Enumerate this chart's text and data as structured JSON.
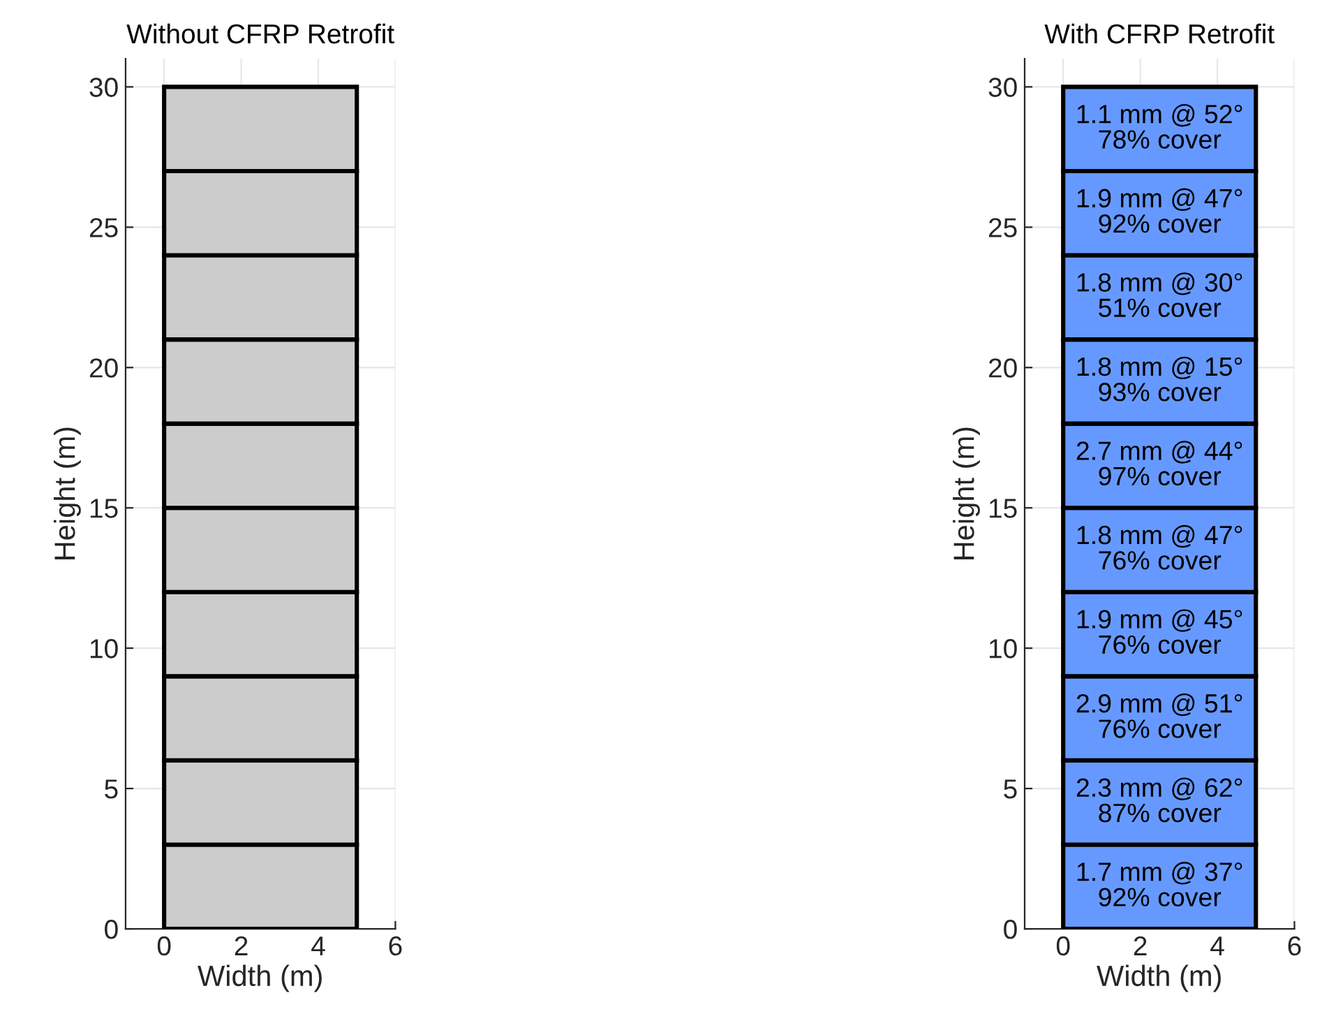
{
  "chart_data": [
    {
      "type": "bar",
      "title": "Without CFRP Retrofit",
      "xlabel": "Width (m)",
      "ylabel": "Height (m)",
      "stacked": true,
      "x": [
        2.5
      ],
      "xlim": [
        -1,
        6
      ],
      "xticks": [
        0,
        2,
        4,
        6
      ],
      "ylim": [
        0,
        31
      ],
      "yticks": [
        0,
        5,
        10,
        15,
        20,
        25,
        30
      ],
      "grid": true,
      "series": [
        {
          "color": "#cccccc",
          "values": [
            3
          ]
        },
        {
          "color": "#cccccc",
          "values": [
            3
          ]
        },
        {
          "color": "#cccccc",
          "values": [
            3
          ]
        },
        {
          "color": "#cccccc",
          "values": [
            3
          ]
        },
        {
          "color": "#cccccc",
          "values": [
            3
          ]
        },
        {
          "color": "#cccccc",
          "values": [
            3
          ]
        },
        {
          "color": "#cccccc",
          "values": [
            3
          ]
        },
        {
          "color": "#cccccc",
          "values": [
            3
          ]
        },
        {
          "color": "#cccccc",
          "values": [
            3
          ]
        },
        {
          "color": "#cccccc",
          "values": [
            3
          ]
        }
      ]
    },
    {
      "type": "bar",
      "title": "With CFRP Retrofit",
      "xlabel": "Width (m)",
      "ylabel": "Height (m)",
      "stacked": true,
      "x": [
        2.5
      ],
      "xlim": [
        -1,
        6
      ],
      "xticks": [
        0,
        2,
        4,
        6
      ],
      "ylim": [
        0,
        31
      ],
      "yticks": [
        0,
        5,
        10,
        15,
        20,
        25,
        30
      ],
      "grid": true,
      "series": [
        {
          "color": "#6699ff",
          "values": [
            3
          ]
        },
        {
          "color": "#6699ff",
          "values": [
            3
          ]
        },
        {
          "color": "#6699ff",
          "values": [
            3
          ]
        },
        {
          "color": "#6699ff",
          "values": [
            3
          ]
        },
        {
          "color": "#6699ff",
          "values": [
            3
          ]
        },
        {
          "color": "#6699ff",
          "values": [
            3
          ]
        },
        {
          "color": "#6699ff",
          "values": [
            3
          ]
        },
        {
          "color": "#6699ff",
          "values": [
            3
          ]
        },
        {
          "color": "#6699ff",
          "values": [
            3
          ]
        },
        {
          "color": "#6699ff",
          "values": [
            3
          ]
        }
      ],
      "annotations": [
        "1.7 mm @ 37°\n92% cover",
        "2.3 mm @ 62°\n87% cover",
        "2.9 mm @ 51°\n76% cover",
        "1.9 mm @ 45°\n76% cover",
        "1.8 mm @ 47°\n76% cover",
        "2.7 mm @ 44°\n97% cover",
        "1.8 mm @ 15°\n93% cover",
        "1.8 mm @ 30°\n51% cover",
        "1.9 mm @ 47°\n92% cover",
        "1.1 mm @ 52°\n78% cover"
      ]
    }
  ]
}
